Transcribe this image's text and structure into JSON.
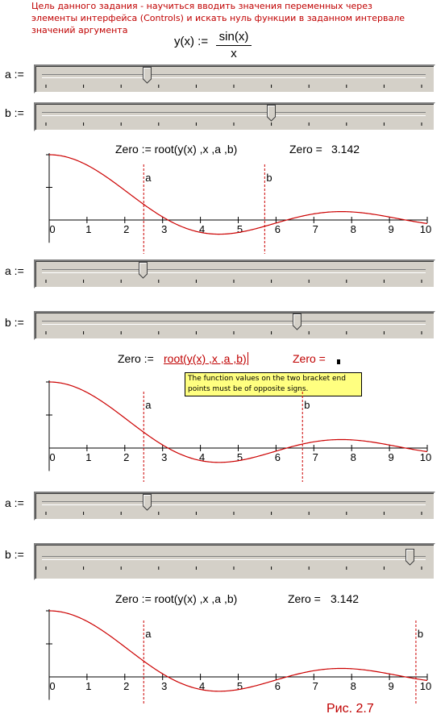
{
  "intro": "Цель данного задания - научиться вводить значения переменных через элементы интерфейса (Controls) и искать нуль функции в заданном интервале значений аргумента",
  "definition": {
    "lhs": "y(x) :=",
    "numerator": "sin(x)",
    "denominator": "x"
  },
  "labels": {
    "a": "a :=",
    "b": "b :=",
    "tick_a": "a",
    "tick_b": "b"
  },
  "sections": [
    {
      "slider_a": 0.27,
      "slider_b": 0.6,
      "eq_lhs": "Zero := root(y(x) ,x ,a ,b)",
      "result_label": "Zero =",
      "result_value": "3.142",
      "a": 2.5,
      "b": 5.7
    },
    {
      "slider_a": 0.26,
      "slider_b": 0.67,
      "eq_lhs_prefix": "Zero :=",
      "eq_lhs_root": "root(y(x) ,x ,a ,b)",
      "result_label": "Zero =",
      "result_value": "",
      "error_tooltip": "The function values on the two bracket end points must be of opposite signs.",
      "a": 2.5,
      "b": 6.7
    },
    {
      "slider_a": 0.27,
      "slider_b": 0.97,
      "eq_lhs": "Zero := root(y(x) ,x ,a ,b)",
      "result_label": "Zero =",
      "result_value": "3.142",
      "a": 2.5,
      "b": 9.7
    }
  ],
  "figure_caption": "Рис. 2.7",
  "chart_data": [
    {
      "type": "line",
      "function": "sin(x)/x",
      "x_range": [
        0,
        10
      ],
      "x_ticks": [
        "0",
        "1",
        "2",
        "3",
        "4",
        "5",
        "6",
        "7",
        "8",
        "9",
        "10"
      ],
      "y_range": [
        -0.25,
        1
      ],
      "markers": [
        {
          "name": "a",
          "x": 2.5
        },
        {
          "name": "b",
          "x": 5.7
        }
      ],
      "color": "#cc0000"
    },
    {
      "type": "line",
      "function": "sin(x)/x",
      "x_range": [
        0,
        10
      ],
      "x_ticks": [
        "0",
        "1",
        "2",
        "3",
        "4",
        "5",
        "6",
        "7",
        "8",
        "9",
        "10"
      ],
      "y_range": [
        -0.25,
        1
      ],
      "markers": [
        {
          "name": "a",
          "x": 2.5
        },
        {
          "name": "b",
          "x": 6.7
        }
      ],
      "color": "#cc0000"
    },
    {
      "type": "line",
      "function": "sin(x)/x",
      "x_range": [
        0,
        10
      ],
      "x_ticks": [
        "0",
        "1",
        "2",
        "3",
        "4",
        "5",
        "6",
        "7",
        "8",
        "9",
        "10"
      ],
      "y_range": [
        -0.25,
        1
      ],
      "markers": [
        {
          "name": "a",
          "x": 2.5
        },
        {
          "name": "b",
          "x": 9.7
        }
      ],
      "color": "#cc0000"
    }
  ]
}
